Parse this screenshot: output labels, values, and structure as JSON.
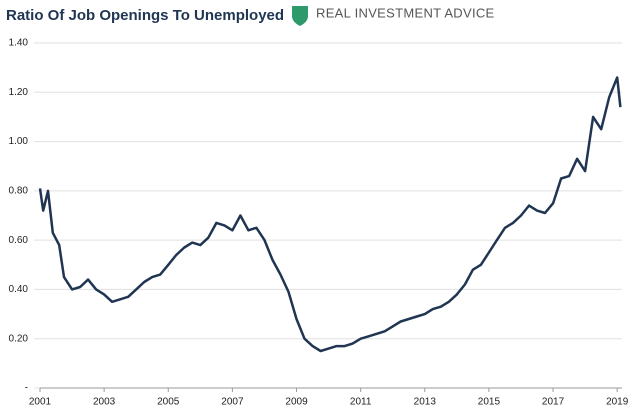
{
  "chart_data": {
    "type": "line",
    "title": "Ratio Of Job Openings To Unemployed",
    "brand": "REAL INVESTMENT ADVICE",
    "x": [
      2001.0,
      2001.1,
      2001.25,
      2001.4,
      2001.6,
      2001.75,
      2002.0,
      2002.25,
      2002.5,
      2002.75,
      2003.0,
      2003.25,
      2003.5,
      2003.75,
      2004.0,
      2004.25,
      2004.5,
      2004.75,
      2005.0,
      2005.25,
      2005.5,
      2005.75,
      2006.0,
      2006.25,
      2006.5,
      2006.75,
      2007.0,
      2007.25,
      2007.5,
      2007.75,
      2008.0,
      2008.25,
      2008.5,
      2008.75,
      2009.0,
      2009.25,
      2009.5,
      2009.75,
      2010.0,
      2010.25,
      2010.5,
      2010.75,
      2011.0,
      2011.25,
      2011.5,
      2011.75,
      2012.0,
      2012.25,
      2012.5,
      2012.75,
      2013.0,
      2013.25,
      2013.5,
      2013.75,
      2014.0,
      2014.25,
      2014.5,
      2014.75,
      2015.0,
      2015.25,
      2015.5,
      2015.75,
      2016.0,
      2016.25,
      2016.5,
      2016.75,
      2017.0,
      2017.25,
      2017.5,
      2017.75,
      2018.0,
      2018.25,
      2018.5,
      2018.75,
      2019.0,
      2019.1
    ],
    "series": [
      {
        "name": "Ratio",
        "color": "#1f3552",
        "values": [
          0.81,
          0.72,
          0.8,
          0.63,
          0.58,
          0.45,
          0.4,
          0.41,
          0.44,
          0.4,
          0.38,
          0.35,
          0.36,
          0.37,
          0.4,
          0.43,
          0.45,
          0.46,
          0.5,
          0.54,
          0.57,
          0.59,
          0.58,
          0.61,
          0.67,
          0.66,
          0.64,
          0.7,
          0.64,
          0.65,
          0.6,
          0.52,
          0.46,
          0.39,
          0.28,
          0.2,
          0.17,
          0.15,
          0.16,
          0.17,
          0.17,
          0.18,
          0.2,
          0.21,
          0.22,
          0.23,
          0.25,
          0.27,
          0.28,
          0.29,
          0.3,
          0.32,
          0.33,
          0.35,
          0.38,
          0.42,
          0.48,
          0.5,
          0.55,
          0.6,
          0.65,
          0.67,
          0.7,
          0.74,
          0.72,
          0.71,
          0.75,
          0.85,
          0.86,
          0.93,
          0.88,
          1.1,
          1.05,
          1.18,
          1.26,
          1.14
        ]
      }
    ],
    "xlim": [
      2001,
      2019.15
    ],
    "xticks": [
      2001,
      2003,
      2005,
      2007,
      2009,
      2011,
      2013,
      2015,
      2017,
      2019
    ],
    "ylim": [
      0,
      1.4
    ],
    "yticks": [
      {
        "value": 0,
        "label": "-"
      },
      {
        "value": 0.2,
        "label": "0.20"
      },
      {
        "value": 0.4,
        "label": "0.40"
      },
      {
        "value": 0.6,
        "label": "0.60"
      },
      {
        "value": 0.8,
        "label": "0.80"
      },
      {
        "value": 1.0,
        "label": "1.00"
      },
      {
        "value": 1.2,
        "label": "1.20"
      },
      {
        "value": 1.4,
        "label": "1.40"
      }
    ],
    "grid": true
  }
}
